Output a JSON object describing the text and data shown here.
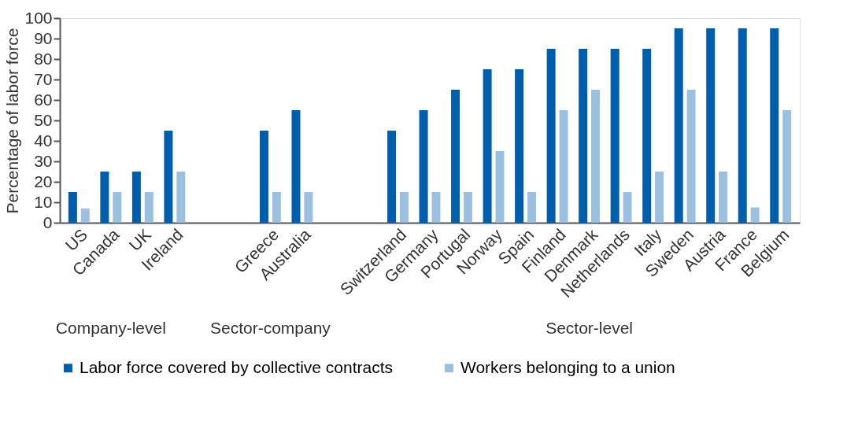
{
  "chart_data": {
    "type": "bar",
    "ylabel": "Percentage of labor force",
    "categories": [
      "US",
      "Canada",
      "UK",
      "Ireland",
      null,
      null,
      "Greece",
      "Australia",
      null,
      null,
      "Switzerland",
      "Germany",
      "Portugal",
      "Norway",
      "Spain",
      "Finland",
      "Denmark",
      "Netherlands",
      "Italy",
      "Sweden",
      "Austria",
      "France",
      "Belgium"
    ],
    "series": [
      {
        "name": "Labor force covered by collective contracts",
        "color": "#005eac",
        "values": [
          15,
          25,
          25,
          45,
          null,
          null,
          45,
          55,
          null,
          null,
          45,
          55,
          65,
          75,
          75,
          85,
          85,
          85,
          85,
          95,
          95,
          95,
          95
        ]
      },
      {
        "name": "Workers belonging to a union",
        "color": "#9cc0e0",
        "values": [
          7,
          15,
          15,
          25,
          null,
          null,
          15,
          15,
          null,
          null,
          15,
          15,
          15,
          35,
          15,
          55,
          65,
          15,
          25,
          65,
          25,
          7.5,
          55
        ]
      }
    ],
    "ylim": [
      0,
      100
    ],
    "yticks": [
      0,
      10,
      20,
      30,
      40,
      50,
      60,
      70,
      80,
      90,
      100
    ],
    "grid": false,
    "legend": "bottom",
    "annotations": [
      "Company-level",
      "Sector-company",
      "Sector-level"
    ]
  }
}
